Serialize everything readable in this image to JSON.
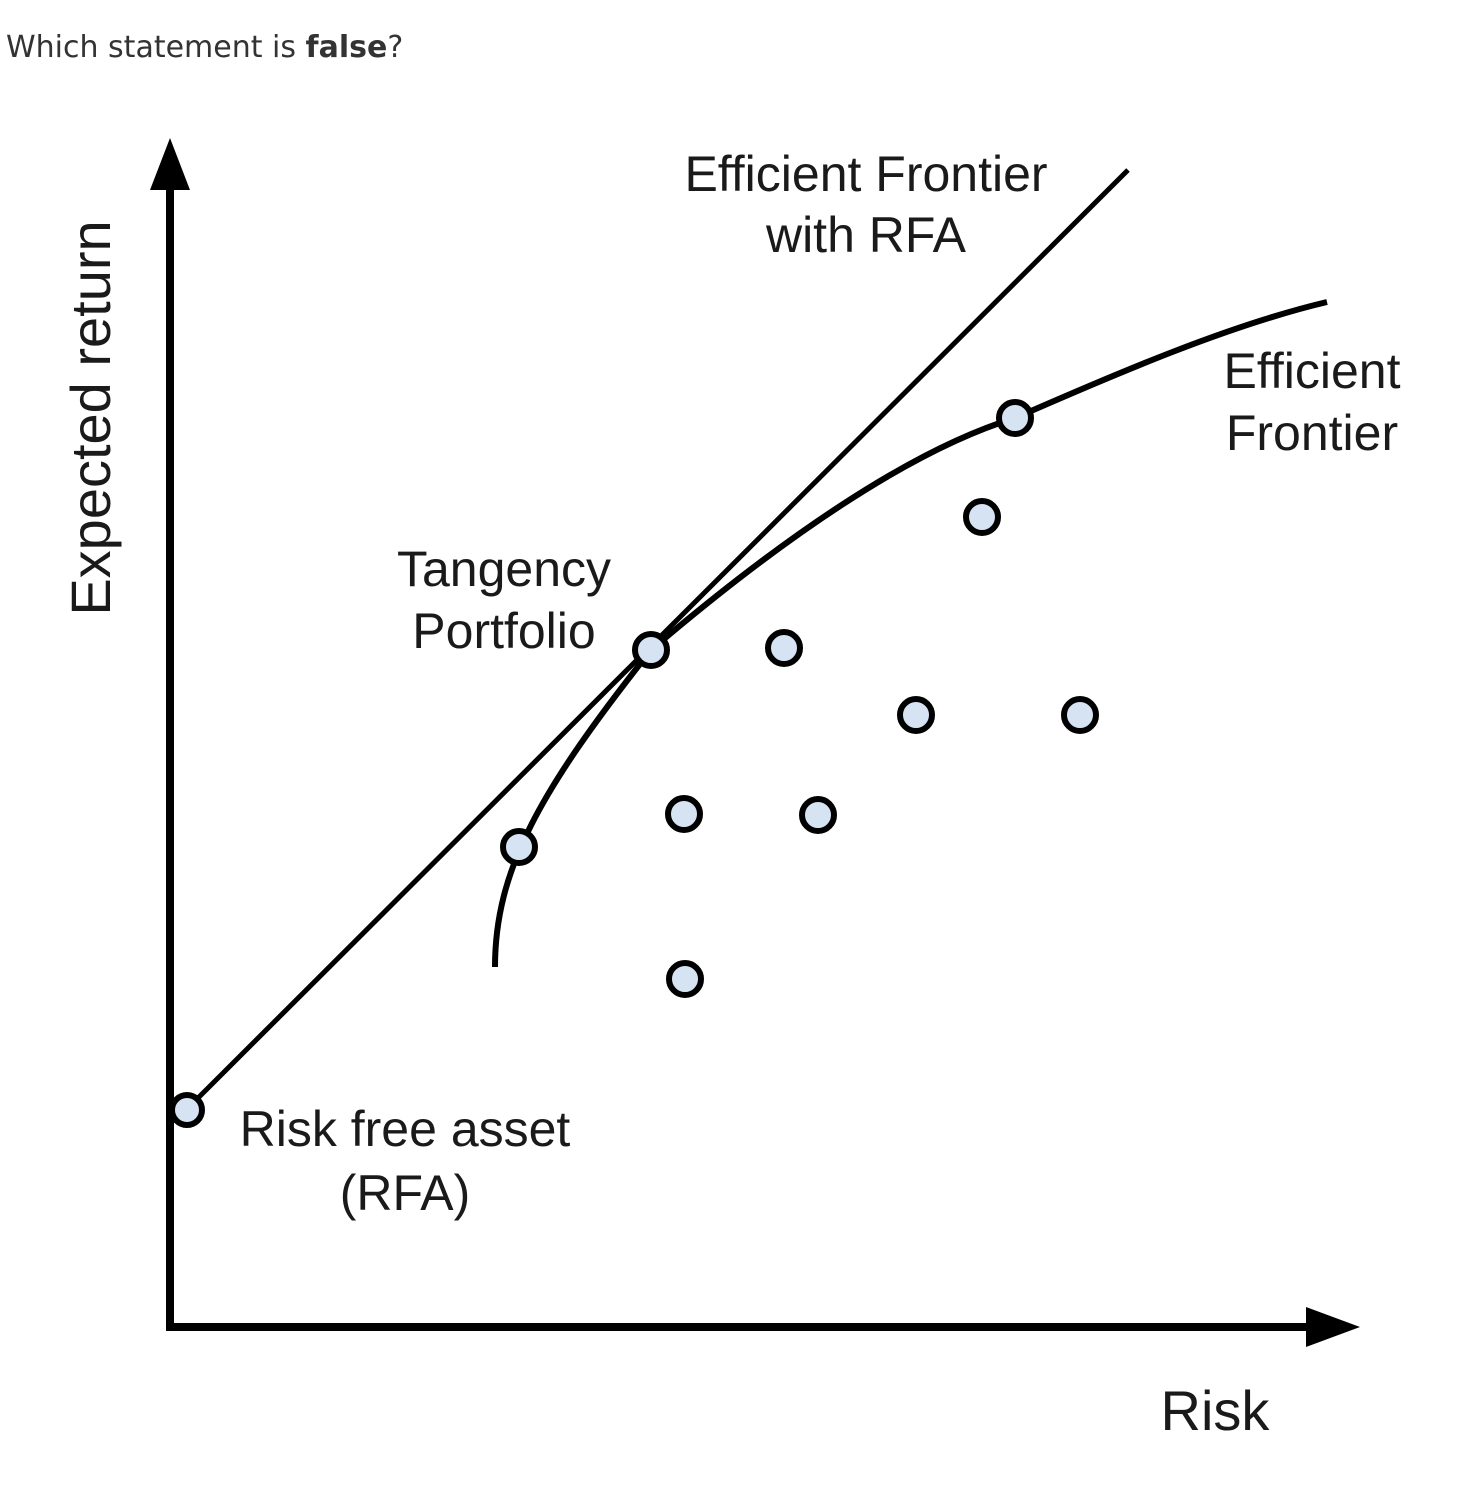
{
  "question": {
    "prefix": "Which statement is ",
    "bold": "false",
    "suffix": "?"
  },
  "diagram": {
    "y_axis_label": "Expected return",
    "x_axis_label": "Risk",
    "cml_label": [
      "Efficient Frontier",
      "with RFA"
    ],
    "frontier_label": [
      "Efficient",
      "Frontier"
    ],
    "tangency_label": [
      "Tangency",
      "Portfolio"
    ],
    "rfa_label": [
      "Risk free asset",
      "(RFA)"
    ],
    "point_fill": "#d6e3f3",
    "line_color": "#000000"
  }
}
